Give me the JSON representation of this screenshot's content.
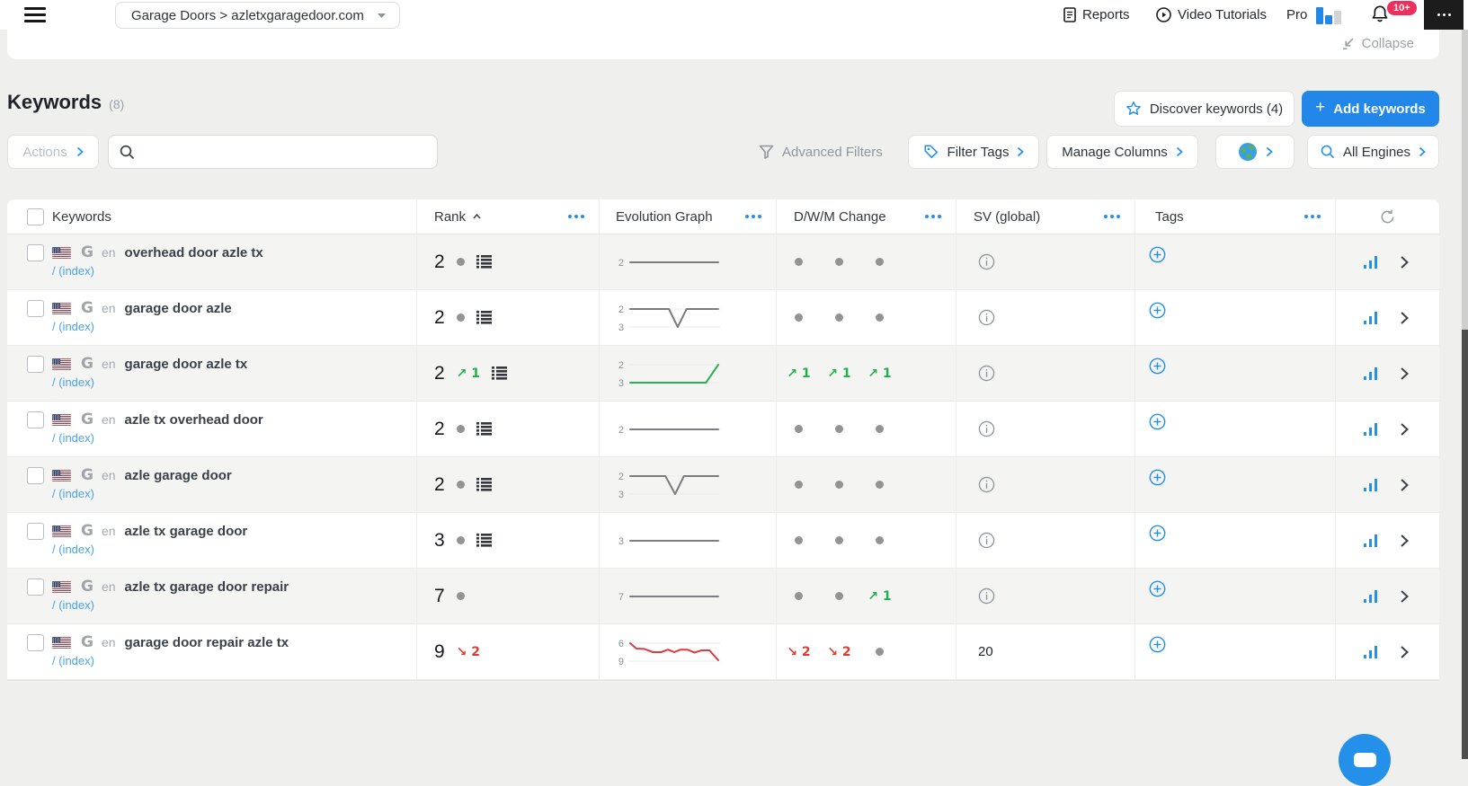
{
  "topbar": {
    "project_selector": "Garage Doors > azletxgaragedoor.com",
    "reports_label": "Reports",
    "video_tutorials_label": "Video Tutorials",
    "pro_label": "Pro",
    "notifications_badge": "10+",
    "collapse_label": "Collapse"
  },
  "header": {
    "title": "Keywords",
    "count": "(8)",
    "discover_label": "Discover keywords (4)",
    "add_label": "Add keywords",
    "plus_icon": "+"
  },
  "toolbar": {
    "actions_label": "Actions",
    "search_value": "",
    "search_placeholder": "",
    "advanced_filters_label": "Advanced Filters",
    "filter_tags_label": "Filter Tags",
    "manage_columns_label": "Manage Columns",
    "all_engines_label": "All Engines"
  },
  "icons": {
    "up_arrow": "↗",
    "down_arrow": "↘"
  },
  "colors": {
    "accent_blue": "#2490ea",
    "button_blue": "#2287e8",
    "green": "#21af4b",
    "red": "#e03a31",
    "spark_gray": "#7c7c80",
    "spark_green": "#2bb153",
    "spark_red": "#e0393f",
    "badge_red": "#ee2e5b"
  },
  "table": {
    "columns": {
      "keywords": "Keywords",
      "rank": "Rank",
      "evolution": "Evolution Graph",
      "dwm": "D/W/M Change",
      "sv": "SV (global)",
      "tags": "Tags"
    },
    "rows": [
      {
        "keyword": "overhead door azle tx",
        "lang": "en",
        "url": "/ (index)",
        "rank": {
          "value": "2",
          "steady": true,
          "change": null,
          "serp": true
        },
        "graph": {
          "labels": [
            "2"
          ],
          "color": "gray",
          "points": [
            [
              0,
              0
            ],
            [
              100,
              0
            ]
          ]
        },
        "dwm": [
          {
            "type": "steady"
          },
          {
            "type": "steady"
          },
          {
            "type": "steady"
          }
        ],
        "sv": null
      },
      {
        "keyword": "garage door azle",
        "lang": "en",
        "url": "/ (index)",
        "rank": {
          "value": "2",
          "steady": true,
          "change": null,
          "serp": true
        },
        "graph": {
          "labels": [
            "2",
            "3"
          ],
          "color": "gray",
          "points": [
            [
              0,
              0
            ],
            [
              44,
              0
            ],
            [
              54,
              1
            ],
            [
              64,
              0
            ],
            [
              100,
              0
            ]
          ]
        },
        "dwm": [
          {
            "type": "steady"
          },
          {
            "type": "steady"
          },
          {
            "type": "steady"
          }
        ],
        "sv": null
      },
      {
        "keyword": "garage door azle tx",
        "lang": "en",
        "url": "/ (index)",
        "rank": {
          "value": "2",
          "steady": false,
          "change": {
            "dir": "up",
            "value": "1"
          },
          "serp": true
        },
        "graph": {
          "labels": [
            "2",
            "3"
          ],
          "color": "green",
          "points": [
            [
              0,
              1
            ],
            [
              86,
              1
            ],
            [
              100,
              0
            ]
          ]
        },
        "dwm": [
          {
            "type": "up",
            "value": "1"
          },
          {
            "type": "up",
            "value": "1"
          },
          {
            "type": "up",
            "value": "1"
          }
        ],
        "sv": null
      },
      {
        "keyword": "azle tx overhead door",
        "lang": "en",
        "url": "/ (index)",
        "rank": {
          "value": "2",
          "steady": true,
          "change": null,
          "serp": true
        },
        "graph": {
          "labels": [
            "2"
          ],
          "color": "gray",
          "points": [
            [
              0,
              0
            ],
            [
              100,
              0
            ]
          ]
        },
        "dwm": [
          {
            "type": "steady"
          },
          {
            "type": "steady"
          },
          {
            "type": "steady"
          }
        ],
        "sv": null
      },
      {
        "keyword": "azle garage door",
        "lang": "en",
        "url": "/ (index)",
        "rank": {
          "value": "2",
          "steady": true,
          "change": null,
          "serp": true
        },
        "graph": {
          "labels": [
            "2",
            "3"
          ],
          "color": "gray",
          "points": [
            [
              0,
              0
            ],
            [
              40,
              0
            ],
            [
              51,
              1
            ],
            [
              61,
              0
            ],
            [
              100,
              0
            ]
          ]
        },
        "dwm": [
          {
            "type": "steady"
          },
          {
            "type": "steady"
          },
          {
            "type": "steady"
          }
        ],
        "sv": null
      },
      {
        "keyword": "azle tx garage door",
        "lang": "en",
        "url": "/ (index)",
        "rank": {
          "value": "3",
          "steady": true,
          "change": null,
          "serp": true
        },
        "graph": {
          "labels": [
            "3"
          ],
          "color": "gray",
          "points": [
            [
              0,
              0
            ],
            [
              100,
              0
            ]
          ]
        },
        "dwm": [
          {
            "type": "steady"
          },
          {
            "type": "steady"
          },
          {
            "type": "steady"
          }
        ],
        "sv": null
      },
      {
        "keyword": "azle tx garage door repair",
        "lang": "en",
        "url": "/ (index)",
        "rank": {
          "value": "7",
          "steady": true,
          "change": null,
          "serp": false
        },
        "graph": {
          "labels": [
            "7"
          ],
          "color": "gray",
          "points": [
            [
              0,
              0
            ],
            [
              100,
              0
            ]
          ]
        },
        "dwm": [
          {
            "type": "steady"
          },
          {
            "type": "steady"
          },
          {
            "type": "up",
            "value": "1"
          }
        ],
        "sv": null
      },
      {
        "keyword": "garage door repair azle tx",
        "lang": "en",
        "url": "/ (index)",
        "rank": {
          "value": "9",
          "steady": false,
          "change": {
            "dir": "down",
            "value": "2"
          },
          "serp": false
        },
        "graph": {
          "labels": [
            "6",
            "9"
          ],
          "color": "red",
          "points": [
            [
              0,
              0
            ],
            [
              7,
              0.3
            ],
            [
              16,
              0.32
            ],
            [
              26,
              0.5
            ],
            [
              35,
              0.5
            ],
            [
              43,
              0.36
            ],
            [
              50,
              0.5
            ],
            [
              57,
              0.36
            ],
            [
              65,
              0.36
            ],
            [
              73,
              0.52
            ],
            [
              81,
              0.4
            ],
            [
              90,
              0.4
            ],
            [
              100,
              0.95
            ]
          ]
        },
        "dwm": [
          {
            "type": "down",
            "value": "2"
          },
          {
            "type": "down",
            "value": "2"
          },
          {
            "type": "steady"
          }
        ],
        "sv": "20"
      }
    ]
  }
}
